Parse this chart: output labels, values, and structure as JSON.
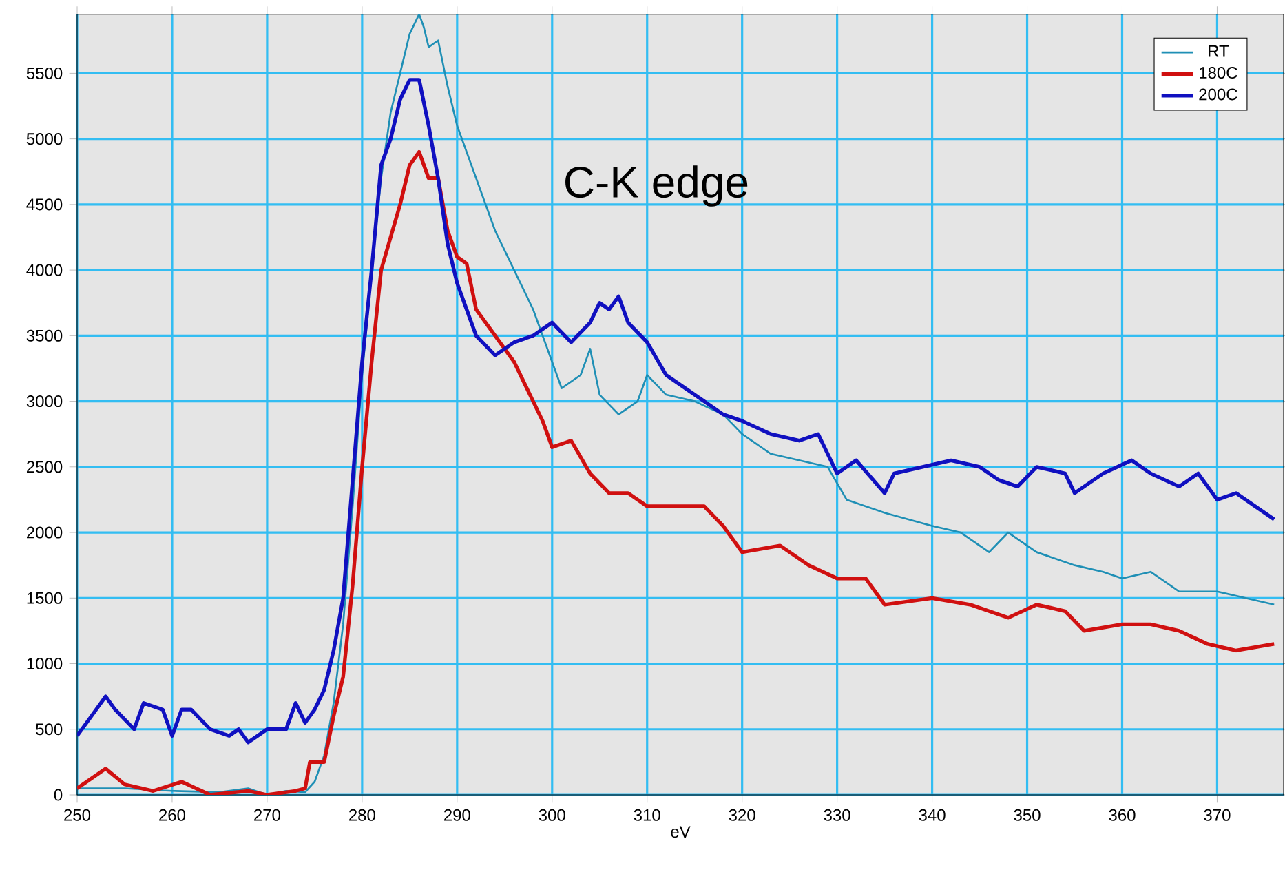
{
  "chart_data": {
    "type": "line",
    "xlabel": "eV",
    "annotations": [
      "C-K edge"
    ],
    "xlim": [
      250,
      377
    ],
    "ylim": [
      0,
      5950
    ],
    "xticks": [
      250,
      260,
      270,
      280,
      290,
      300,
      310,
      320,
      330,
      340,
      350,
      360,
      370
    ],
    "yticks": [
      0,
      500,
      1000,
      1500,
      2000,
      2500,
      3000,
      3500,
      4000,
      4500,
      5000,
      5500
    ],
    "grid": true,
    "legend": "top right",
    "line_style": "solid",
    "marker": "none",
    "series": [
      {
        "name": "RT",
        "color": "#1f8fb5",
        "x": [
          250,
          255,
          260,
          265,
          268,
          270,
          272,
          274,
          275,
          276,
          277,
          278,
          279,
          280,
          281,
          282,
          283,
          284,
          285,
          286,
          286.5,
          287,
          288,
          289,
          290,
          292,
          294,
          296,
          298,
          300,
          301,
          303,
          304,
          305,
          307,
          309,
          310,
          312,
          315,
          318,
          320,
          323,
          326,
          329,
          331,
          335,
          340,
          343,
          346,
          348,
          351,
          355,
          358,
          360,
          363,
          366,
          370,
          373,
          376
        ],
        "values": [
          50,
          50,
          30,
          20,
          50,
          0,
          30,
          20,
          100,
          300,
          700,
          1300,
          2200,
          3200,
          4000,
          4700,
          5200,
          5500,
          5800,
          5950,
          5850,
          5700,
          5750,
          5400,
          5100,
          4700,
          4300,
          4000,
          3700,
          3300,
          3100,
          3200,
          3400,
          3050,
          2900,
          3000,
          3200,
          3050,
          3000,
          2900,
          2750,
          2600,
          2550,
          2500,
          2250,
          2150,
          2050,
          2000,
          1850,
          2000,
          1850,
          1750,
          1700,
          1650,
          1700,
          1550,
          1550,
          1500,
          1450
        ]
      },
      {
        "name": "180C",
        "color": "#d01010",
        "x": [
          250,
          253,
          255,
          258,
          261,
          264,
          268,
          270,
          273,
          274,
          274.5,
          276,
          277,
          278,
          279,
          280,
          281,
          282,
          284,
          285,
          286,
          287,
          288,
          289,
          290,
          291,
          292,
          294,
          296,
          298,
          299,
          300,
          302,
          304,
          306,
          308,
          310,
          313,
          316,
          318,
          320,
          324,
          327,
          330,
          333,
          335,
          340,
          344,
          348,
          351,
          354,
          356,
          360,
          363,
          366,
          369,
          372,
          376
        ],
        "values": [
          50,
          200,
          80,
          30,
          100,
          0,
          30,
          0,
          30,
          50,
          250,
          250,
          600,
          900,
          1600,
          2500,
          3300,
          4000,
          4500,
          4800,
          4900,
          4700,
          4700,
          4300,
          4100,
          4050,
          3700,
          3500,
          3300,
          3000,
          2850,
          2650,
          2700,
          2450,
          2300,
          2300,
          2200,
          2200,
          2200,
          2050,
          1850,
          1900,
          1750,
          1650,
          1650,
          1450,
          1500,
          1450,
          1350,
          1450,
          1400,
          1250,
          1300,
          1300,
          1250,
          1150,
          1100,
          1150
        ]
      },
      {
        "name": "200C",
        "color": "#1010c0",
        "x": [
          250,
          251,
          253,
          254,
          256,
          257,
          259,
          260,
          261,
          262,
          264,
          266,
          267,
          268,
          269,
          270,
          272,
          273,
          274,
          275,
          276,
          277,
          278,
          279,
          280,
          281,
          282,
          283,
          284,
          285,
          286,
          287,
          288,
          289,
          290,
          291,
          292,
          294,
          296,
          298,
          299,
          300,
          302,
          304,
          305,
          306,
          307,
          308,
          310,
          312,
          315,
          318,
          320,
          323,
          326,
          328,
          330,
          332,
          335,
          336,
          339,
          342,
          345,
          347,
          349,
          351,
          354,
          355,
          358,
          361,
          363,
          366,
          368,
          370,
          372,
          374,
          376
        ],
        "values": [
          450,
          550,
          750,
          650,
          500,
          700,
          650,
          450,
          650,
          650,
          500,
          450,
          500,
          400,
          450,
          500,
          500,
          700,
          550,
          650,
          800,
          1100,
          1500,
          2400,
          3300,
          4000,
          4800,
          5000,
          5300,
          5450,
          5450,
          5100,
          4700,
          4200,
          3900,
          3700,
          3500,
          3350,
          3450,
          3500,
          3550,
          3600,
          3450,
          3600,
          3750,
          3700,
          3800,
          3600,
          3450,
          3200,
          3050,
          2900,
          2850,
          2750,
          2700,
          2750,
          2450,
          2550,
          2300,
          2450,
          2500,
          2550,
          2500,
          2400,
          2350,
          2500,
          2450,
          2300,
          2450,
          2550,
          2450,
          2350,
          2450,
          2250,
          2300,
          2200,
          2100
        ]
      }
    ]
  }
}
